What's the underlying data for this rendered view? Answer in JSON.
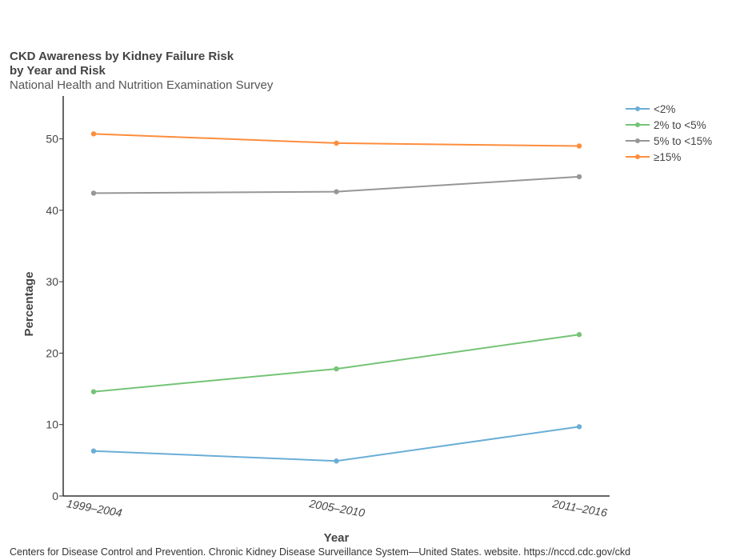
{
  "chart_data": {
    "type": "line",
    "title": "CKD Awareness by Kidney Failure Risk",
    "title_line2": "by Year and Risk",
    "subtitle": "National Health and Nutrition Examination Survey",
    "xlabel": "Year",
    "ylabel": "Percentage",
    "categories": [
      "1999–2004",
      "2005–2010",
      "2011–2016"
    ],
    "ylim": [
      0,
      56
    ],
    "yticks": [
      0,
      10,
      20,
      30,
      40,
      50
    ],
    "grid": false,
    "legend_position": "top-right",
    "series": [
      {
        "name": "<2%",
        "color": "#6aaed6",
        "values": [
          6.3,
          4.9,
          9.7
        ]
      },
      {
        "name": "2% to <5%",
        "color": "#74c476",
        "values": [
          14.6,
          17.8,
          22.6
        ]
      },
      {
        "name": "5% to <15%",
        "color": "#969696",
        "values": [
          42.4,
          42.6,
          44.7
        ]
      },
      {
        "name": "≥15%",
        "color": "#fd8d3c",
        "values": [
          50.7,
          49.4,
          49.0
        ]
      }
    ]
  },
  "source_text": "Centers for Disease Control and Prevention. Chronic Kidney Disease Surveillance System—United States. website. https://nccd.cdc.gov/ckd"
}
